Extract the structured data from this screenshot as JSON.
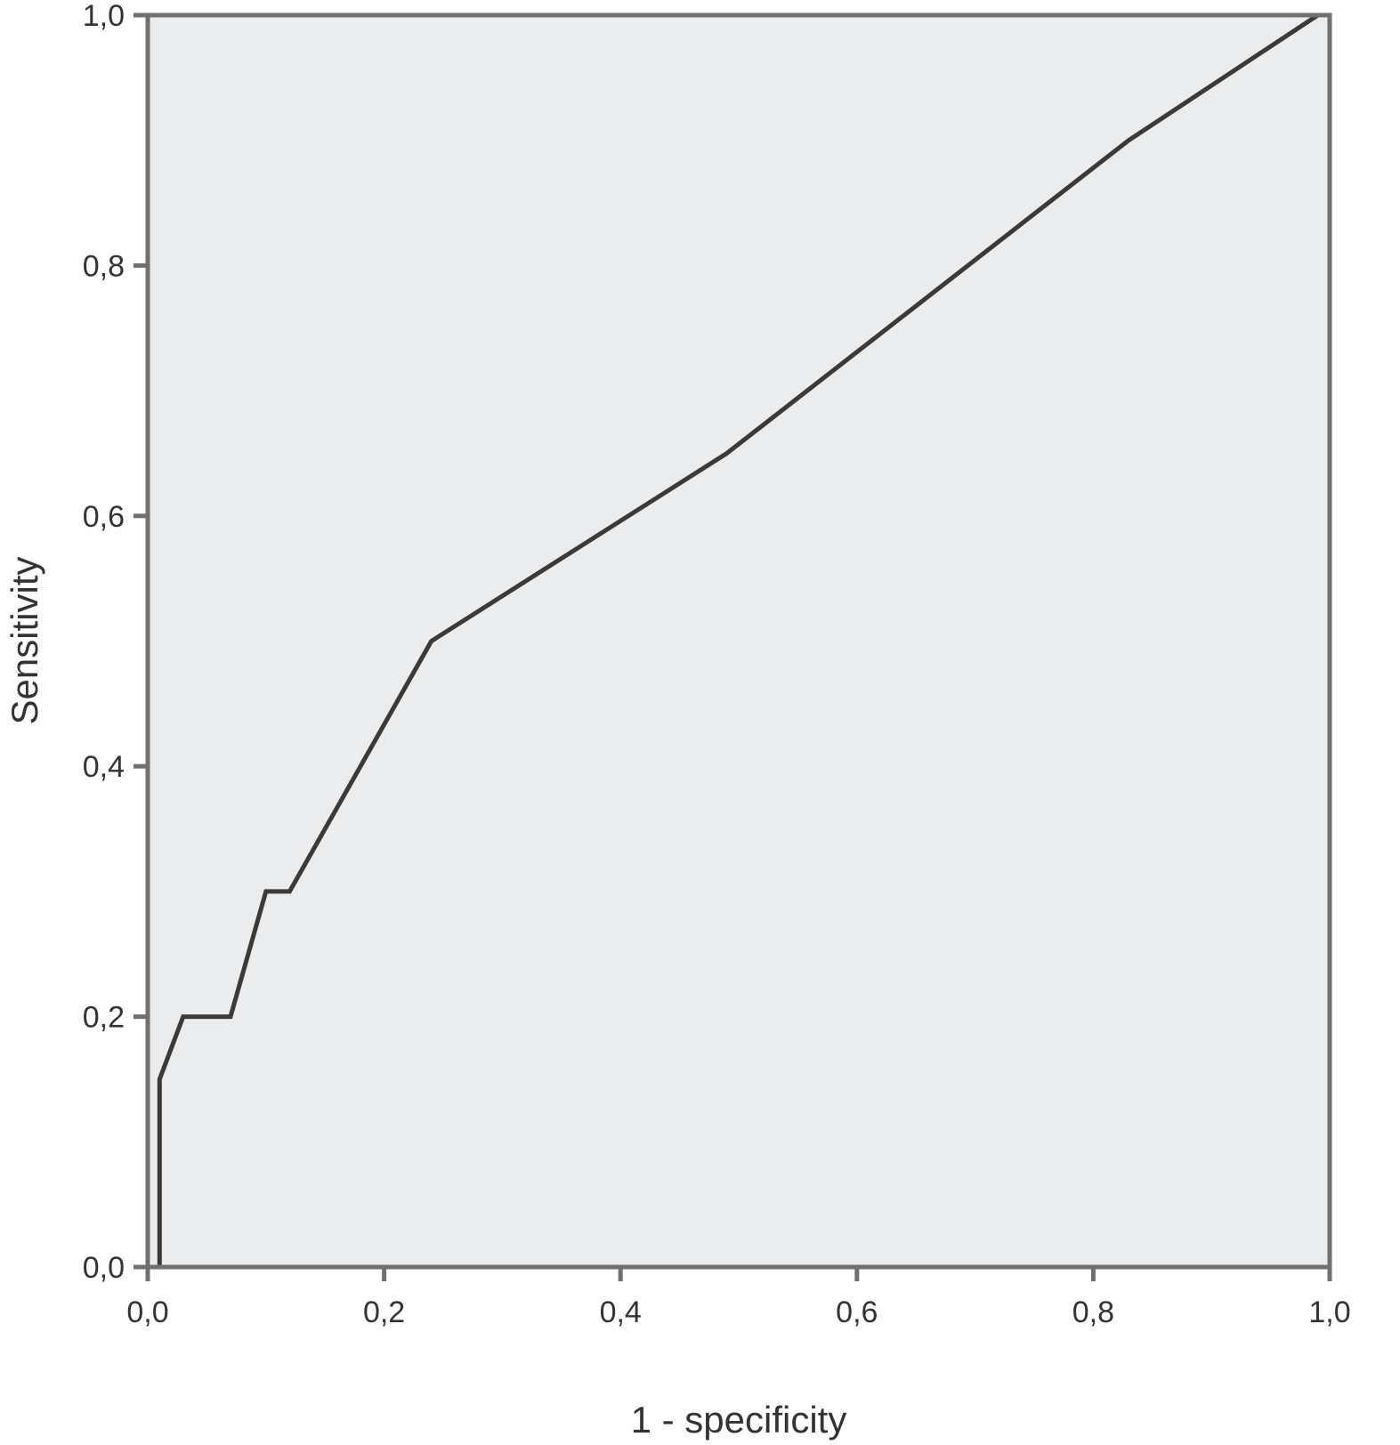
{
  "chart_data": {
    "type": "line",
    "title": "",
    "xlabel": "1 - specificity",
    "ylabel": "Sensitivity",
    "xlim": [
      0,
      1
    ],
    "ylim": [
      0,
      1
    ],
    "grid": false,
    "x_ticks": [
      "0,0",
      "0,2",
      "0,4",
      "0,6",
      "0,8",
      "1,0"
    ],
    "y_ticks": [
      "0,0",
      "0,2",
      "0,4",
      "0,6",
      "0,8",
      "1,0"
    ],
    "tick_values": [
      0,
      0.2,
      0.4,
      0.6,
      0.8,
      1.0
    ],
    "background_color": "#ebecee",
    "line_color": "#3a3a3a",
    "series": [
      {
        "x": [
          0,
          0.01,
          0.01,
          0.03,
          0.07,
          0.1,
          0.12,
          0.24,
          0.49,
          0.83,
          0.99,
          1.0
        ],
        "y": [
          0,
          0,
          0.15,
          0.2,
          0.2,
          0.3,
          0.3,
          0.5,
          0.65,
          0.9,
          1.0,
          1.0
        ]
      }
    ]
  }
}
